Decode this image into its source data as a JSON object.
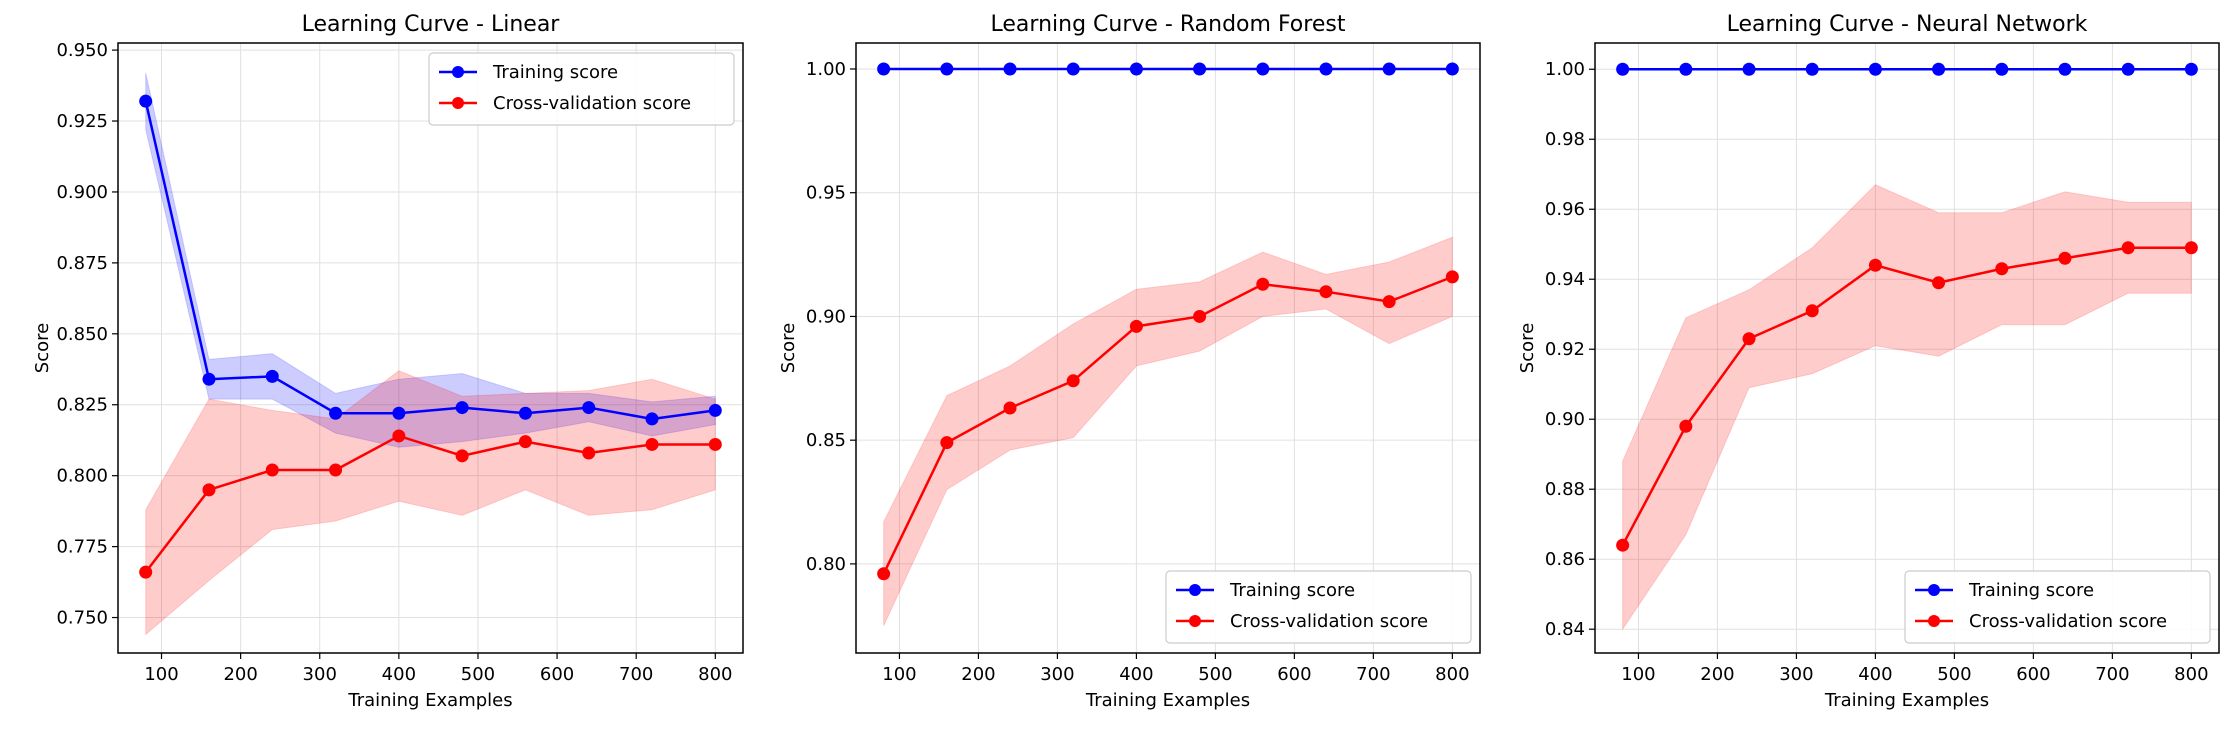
{
  "colors": {
    "train": "#0000ff",
    "cv": "#ff0000",
    "train_band": "#0000ff",
    "cv_band": "#ff0000",
    "grid": "#e0e0e0",
    "axis": "#000000"
  },
  "chart_data": [
    {
      "type": "line",
      "title": "Learning Curve - Linear",
      "xlabel": "Training Examples",
      "ylabel": "Score",
      "xlim": [
        45,
        835
      ],
      "ylim": [
        0.7375,
        0.9525
      ],
      "xticks": [
        100,
        200,
        300,
        400,
        500,
        600,
        700,
        800
      ],
      "xtick_labels": [
        "100",
        "200",
        "300",
        "400",
        "500",
        "600",
        "700",
        "800"
      ],
      "yticks": [
        0.75,
        0.775,
        0.8,
        0.825,
        0.85,
        0.875,
        0.9,
        0.925,
        0.95
      ],
      "ytick_labels": [
        "0.750",
        "0.775",
        "0.800",
        "0.825",
        "0.850",
        "0.875",
        "0.900",
        "0.925",
        "0.950"
      ],
      "grid": true,
      "legend": {
        "position": "top-right"
      },
      "x": [
        80,
        160,
        240,
        320,
        400,
        480,
        560,
        640,
        720,
        800
      ],
      "series": [
        {
          "name": "Training score",
          "values": [
            0.932,
            0.834,
            0.835,
            0.822,
            0.822,
            0.824,
            0.822,
            0.824,
            0.82,
            0.823
          ],
          "upper": [
            0.942,
            0.841,
            0.843,
            0.829,
            0.834,
            0.836,
            0.829,
            0.829,
            0.826,
            0.828
          ],
          "lower": [
            0.922,
            0.827,
            0.827,
            0.815,
            0.81,
            0.812,
            0.815,
            0.819,
            0.814,
            0.818
          ]
        },
        {
          "name": "Cross-validation score",
          "values": [
            0.766,
            0.795,
            0.802,
            0.802,
            0.814,
            0.807,
            0.812,
            0.808,
            0.811,
            0.811
          ],
          "upper": [
            0.788,
            0.827,
            0.823,
            0.82,
            0.837,
            0.828,
            0.829,
            0.83,
            0.834,
            0.827
          ],
          "lower": [
            0.744,
            0.763,
            0.781,
            0.784,
            0.791,
            0.786,
            0.795,
            0.786,
            0.788,
            0.795
          ]
        }
      ]
    },
    {
      "type": "line",
      "title": "Learning Curve - Random Forest",
      "xlabel": "Training Examples",
      "ylabel": "Score",
      "xlim": [
        45,
        835
      ],
      "ylim": [
        0.764,
        1.0105
      ],
      "xticks": [
        100,
        200,
        300,
        400,
        500,
        600,
        700,
        800
      ],
      "xtick_labels": [
        "100",
        "200",
        "300",
        "400",
        "500",
        "600",
        "700",
        "800"
      ],
      "yticks": [
        0.8,
        0.85,
        0.9,
        0.95,
        1.0
      ],
      "ytick_labels": [
        "0.80",
        "0.85",
        "0.90",
        "0.95",
        "1.00"
      ],
      "grid": true,
      "legend": {
        "position": "bottom-right"
      },
      "x": [
        80,
        160,
        240,
        320,
        400,
        480,
        560,
        640,
        720,
        800
      ],
      "series": [
        {
          "name": "Training score",
          "values": [
            1.0,
            1.0,
            1.0,
            1.0,
            1.0,
            1.0,
            1.0,
            1.0,
            1.0,
            1.0
          ],
          "upper": [
            1.0,
            1.0,
            1.0,
            1.0,
            1.0,
            1.0,
            1.0,
            1.0,
            1.0,
            1.0
          ],
          "lower": [
            1.0,
            1.0,
            1.0,
            1.0,
            1.0,
            1.0,
            1.0,
            1.0,
            1.0,
            1.0
          ]
        },
        {
          "name": "Cross-validation score",
          "values": [
            0.796,
            0.849,
            0.863,
            0.874,
            0.896,
            0.9,
            0.913,
            0.91,
            0.906,
            0.916
          ],
          "upper": [
            0.817,
            0.868,
            0.88,
            0.897,
            0.911,
            0.914,
            0.926,
            0.917,
            0.922,
            0.932
          ],
          "lower": [
            0.775,
            0.83,
            0.846,
            0.851,
            0.88,
            0.886,
            0.9,
            0.903,
            0.889,
            0.9
          ]
        }
      ]
    },
    {
      "type": "line",
      "title": "Learning Curve - Neural Network",
      "xlabel": "Training Examples",
      "ylabel": "Score",
      "xlim": [
        45,
        835
      ],
      "ylim": [
        0.8332,
        1.0075
      ],
      "xticks": [
        100,
        200,
        300,
        400,
        500,
        600,
        700,
        800
      ],
      "xtick_labels": [
        "100",
        "200",
        "300",
        "400",
        "500",
        "600",
        "700",
        "800"
      ],
      "yticks": [
        0.84,
        0.86,
        0.88,
        0.9,
        0.92,
        0.94,
        0.96,
        0.98,
        1.0
      ],
      "ytick_labels": [
        "0.84",
        "0.86",
        "0.88",
        "0.90",
        "0.92",
        "0.94",
        "0.96",
        "0.98",
        "1.00"
      ],
      "grid": true,
      "legend": {
        "position": "bottom-right"
      },
      "x": [
        80,
        160,
        240,
        320,
        400,
        480,
        560,
        640,
        720,
        800
      ],
      "series": [
        {
          "name": "Training score",
          "values": [
            1.0,
            1.0,
            1.0,
            1.0,
            1.0,
            1.0,
            1.0,
            1.0,
            1.0,
            1.0
          ],
          "upper": [
            1.0,
            1.0,
            1.0,
            1.0,
            1.0,
            1.0,
            1.0,
            1.0,
            1.0,
            1.0
          ],
          "lower": [
            1.0,
            1.0,
            1.0,
            1.0,
            1.0,
            1.0,
            1.0,
            1.0,
            1.0,
            1.0
          ]
        },
        {
          "name": "Cross-validation score",
          "values": [
            0.864,
            0.898,
            0.923,
            0.931,
            0.944,
            0.939,
            0.943,
            0.946,
            0.949,
            0.949
          ],
          "upper": [
            0.888,
            0.929,
            0.937,
            0.949,
            0.967,
            0.959,
            0.959,
            0.965,
            0.962,
            0.962
          ],
          "lower": [
            0.84,
            0.867,
            0.909,
            0.913,
            0.921,
            0.918,
            0.927,
            0.927,
            0.936,
            0.936
          ]
        }
      ]
    }
  ]
}
